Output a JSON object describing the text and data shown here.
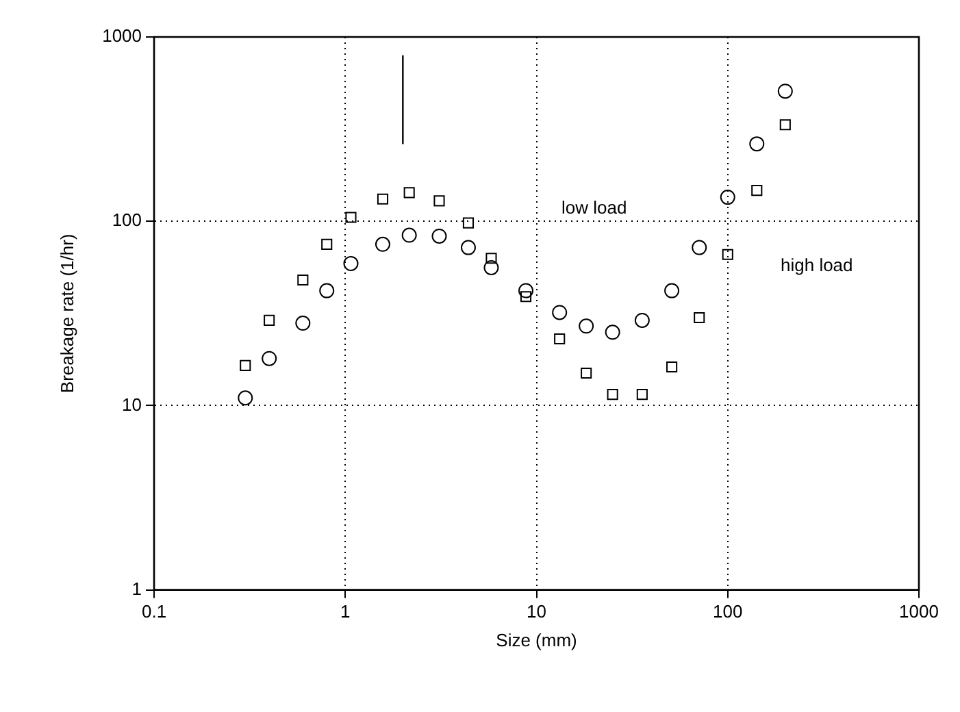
{
  "chart_data": {
    "type": "scatter",
    "xlabel": "Size (mm)",
    "ylabel": "Breakage rate (1/hr)",
    "log": "xy",
    "grid": true,
    "legend": false,
    "xlim": [
      0.1,
      1000
    ],
    "xticks": [
      0.1,
      1,
      10,
      100,
      1000
    ],
    "ylim": [
      1,
      1000
    ],
    "yticks": [
      1,
      10,
      100,
      1000
    ],
    "series": [
      {
        "marker": "circle",
        "color": "#000000",
        "x": [
          0.3,
          0.4,
          0.6,
          0.8,
          1.07,
          1.57,
          2.16,
          3.1,
          4.4,
          5.8,
          8.8,
          13.2,
          18.2,
          25,
          35.7,
          51,
          71,
          100,
          142,
          200
        ],
        "values": [
          11,
          18,
          28,
          42,
          59,
          75,
          84,
          83,
          72,
          56,
          42,
          32,
          27,
          25,
          29,
          42,
          72,
          135,
          263,
          508
        ]
      },
      {
        "marker": "square",
        "color": "#000000",
        "x": [
          0.3,
          0.4,
          0.6,
          0.8,
          1.07,
          1.57,
          2.16,
          3.1,
          4.4,
          5.8,
          8.8,
          13.2,
          18.2,
          25,
          35.7,
          51,
          71,
          100,
          142,
          200
        ],
        "values": [
          16.5,
          29,
          48,
          75,
          105,
          132,
          143,
          129,
          98,
          63,
          39,
          23,
          15,
          11.5,
          11.5,
          16.2,
          30,
          66,
          147,
          334
        ]
      },
      {
        "type": "line",
        "marker": "none",
        "line_style": "solid",
        "color": "#000000",
        "x": [
          2,
          2
        ],
        "values": [
          262,
          795
        ]
      }
    ],
    "annotations": [
      "low load",
      "high load"
    ]
  }
}
